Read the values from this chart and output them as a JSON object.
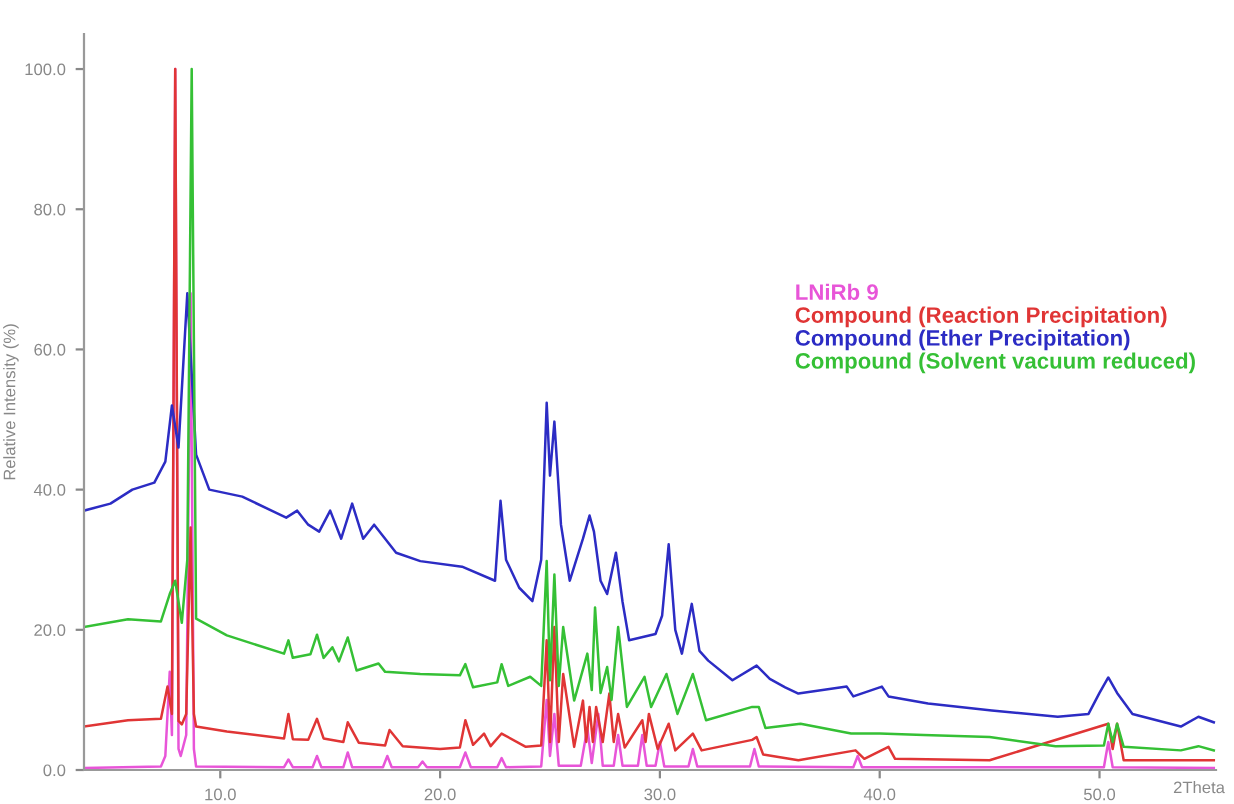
{
  "chart_data": {
    "type": "line",
    "xlabel": "2Theta",
    "ylabel": "Relative Intensity (%)",
    "xlim": [
      3.8,
      55.3
    ],
    "ylim": [
      0,
      105
    ],
    "xticks": [
      {
        "value": 10,
        "label": "10.0"
      },
      {
        "value": 20,
        "label": "20.0"
      },
      {
        "value": 30,
        "label": "30.0"
      },
      {
        "value": 40,
        "label": "40.0"
      },
      {
        "value": 50,
        "label": "50.0"
      }
    ],
    "yticks": [
      {
        "value": 0,
        "label": "0.0"
      },
      {
        "value": 20,
        "label": "20.0"
      },
      {
        "value": 40,
        "label": "40.0"
      },
      {
        "value": 60,
        "label": "60.0"
      },
      {
        "value": 80,
        "label": "80.0"
      },
      {
        "value": 100,
        "label": "100.0"
      }
    ],
    "grid": false,
    "legend": "right",
    "line_style": "solid",
    "marker": "none",
    "series": [
      {
        "name": "LNiRb 9",
        "color": "#e855d8",
        "x": [
          3.8,
          7.3,
          7.5,
          7.7,
          7.8,
          7.95,
          8.1,
          8.2,
          8.45,
          8.65,
          8.8,
          8.9,
          12.9,
          13.1,
          13.3,
          14.2,
          14.4,
          14.6,
          15.6,
          15.8,
          16.0,
          17.4,
          17.6,
          17.8,
          19.0,
          19.2,
          19.4,
          20.9,
          21.15,
          21.4,
          22.6,
          22.8,
          23.0,
          24.6,
          24.85,
          25.0,
          25.2,
          25.4,
          26.4,
          26.7,
          26.9,
          27.2,
          27.4,
          27.9,
          28.1,
          28.3,
          29.0,
          29.2,
          29.4,
          29.8,
          30.0,
          30.2,
          31.3,
          31.5,
          31.7,
          34.1,
          34.3,
          34.5,
          38.8,
          39.0,
          39.2,
          50.2,
          50.4,
          50.6,
          55.2
        ],
        "values": [
          0.3,
          0.5,
          2,
          14,
          5,
          100,
          3,
          2,
          5,
          68,
          3,
          0.5,
          0.4,
          1.5,
          0.4,
          0.4,
          2,
          0.4,
          0.4,
          2.5,
          0.4,
          0.4,
          2,
          0.4,
          0.4,
          1.2,
          0.4,
          0.4,
          2.5,
          0.4,
          0.4,
          1.7,
          0.4,
          0.5,
          10,
          2,
          8,
          0.6,
          0.6,
          6,
          1,
          8,
          0.6,
          0.6,
          5,
          0.6,
          0.6,
          5,
          0.6,
          0.6,
          4,
          0.5,
          0.5,
          3,
          0.5,
          0.5,
          3,
          0.5,
          0.4,
          2,
          0.4,
          0.4,
          4,
          0.4,
          0.3
        ]
      },
      {
        "name": "Compound (Reaction Precipitation)",
        "color": "#e03535",
        "x": [
          3.8,
          5.8,
          7.3,
          7.6,
          7.8,
          7.95,
          8.1,
          8.25,
          8.45,
          8.65,
          8.8,
          8.9,
          10.3,
          12.9,
          13.1,
          13.3,
          14.0,
          14.4,
          14.7,
          15.6,
          15.8,
          16.3,
          17.5,
          17.7,
          18.3,
          20.0,
          20.9,
          21.15,
          21.5,
          22.0,
          22.3,
          22.8,
          23.9,
          24.6,
          24.85,
          25.0,
          25.2,
          25.4,
          25.6,
          26.1,
          26.5,
          26.65,
          26.8,
          26.95,
          27.1,
          27.4,
          27.7,
          27.9,
          28.1,
          28.4,
          29.2,
          29.35,
          29.5,
          29.9,
          30.4,
          30.7,
          31.5,
          31.9,
          34.2,
          34.4,
          34.7,
          36.3,
          38.9,
          39.3,
          40.4,
          40.7,
          45.0,
          50.4,
          50.6,
          50.8,
          51.1,
          55.2
        ],
        "values": [
          6.2,
          7.1,
          7.3,
          11.9,
          8,
          100,
          7,
          6.5,
          8,
          34.6,
          8,
          6.2,
          5.5,
          4.5,
          8.0,
          4.4,
          4.3,
          7.3,
          4.5,
          4.0,
          6.8,
          3.9,
          3.5,
          5.7,
          3.4,
          3.0,
          3.2,
          7.1,
          3.6,
          5.2,
          3.4,
          5.2,
          3.3,
          3.5,
          18.5,
          4,
          20.4,
          4,
          13.7,
          3.3,
          9.9,
          4,
          9.0,
          4,
          9.0,
          4,
          10.9,
          4,
          8,
          3.2,
          7.1,
          4,
          8,
          3.0,
          6.6,
          2.8,
          5.2,
          2.8,
          4.3,
          4.7,
          2.2,
          1.4,
          2.8,
          1.6,
          3.3,
          1.6,
          1.4,
          6.6,
          3,
          6.6,
          1.4,
          1.4
        ]
      },
      {
        "name": "Compound (Ether Precipitation)",
        "color": "#2c2cc4",
        "x": [
          3.8,
          5.0,
          6.0,
          7.0,
          7.5,
          7.8,
          8.1,
          8.5,
          8.9,
          9.5,
          11.0,
          13.0,
          13.5,
          14.0,
          14.5,
          15.0,
          15.5,
          16.0,
          16.5,
          17.0,
          18.0,
          19.1,
          21.0,
          22.5,
          22.75,
          23.0,
          23.6,
          24.2,
          24.6,
          24.85,
          25.0,
          25.2,
          25.5,
          25.9,
          26.5,
          26.8,
          27.0,
          27.3,
          27.6,
          28.0,
          28.3,
          28.6,
          29.8,
          30.1,
          30.4,
          30.7,
          31.0,
          31.45,
          31.8,
          32.2,
          33.3,
          34.4,
          35.0,
          35.7,
          36.3,
          38.5,
          38.8,
          40.1,
          40.4,
          42.2,
          45.1,
          48.1,
          49.5,
          50.0,
          50.4,
          50.8,
          51.5,
          53.7,
          54.5,
          55.2
        ],
        "values": [
          37,
          38,
          40,
          41,
          44,
          52,
          46,
          68,
          45,
          40,
          39,
          36,
          37,
          35,
          34,
          37,
          33,
          38,
          33,
          35,
          31,
          29.8,
          29,
          27,
          38.4,
          30,
          26.0,
          24.1,
          30,
          52.4,
          42,
          49.7,
          35,
          27,
          33,
          36.3,
          34,
          27,
          25.1,
          31,
          24,
          18.5,
          19.4,
          22,
          32.2,
          20,
          16.6,
          23.7,
          17,
          15.6,
          12.8,
          14.9,
          13,
          11.8,
          10.9,
          11.9,
          10.5,
          11.9,
          10.5,
          9.5,
          8.5,
          7.6,
          8,
          11,
          13.2,
          11,
          8,
          6.2,
          7.6,
          6.8
        ]
      },
      {
        "name": "Compound (Solvent vacuum reduced)",
        "color": "#35c035",
        "x": [
          3.8,
          5.8,
          7.3,
          7.7,
          7.95,
          8.25,
          8.5,
          8.7,
          8.9,
          10.3,
          12.9,
          13.1,
          13.3,
          14.1,
          14.4,
          14.7,
          15.1,
          15.4,
          15.8,
          16.2,
          17.2,
          17.5,
          19.1,
          20.9,
          21.15,
          21.5,
          22.6,
          22.8,
          23.1,
          24.1,
          24.6,
          24.85,
          25.0,
          25.2,
          25.4,
          25.6,
          26.1,
          26.7,
          26.9,
          27.05,
          27.3,
          27.6,
          27.8,
          28.1,
          28.5,
          29.3,
          29.6,
          30.3,
          30.8,
          31.5,
          32.1,
          34.2,
          34.5,
          34.8,
          36.4,
          38.7,
          40.0,
          42.0,
          45.0,
          48.0,
          50.2,
          50.4,
          50.6,
          50.8,
          51.1,
          53.7,
          54.5,
          55.2
        ],
        "values": [
          20.4,
          21.5,
          21.2,
          25.1,
          27,
          21,
          30,
          100,
          21.6,
          19.2,
          16.6,
          18.5,
          16.0,
          16.5,
          19.3,
          16,
          17.5,
          15.5,
          18.9,
          14.2,
          15.2,
          14,
          13.7,
          13.5,
          15.1,
          11.8,
          12.5,
          15.1,
          12,
          13.3,
          12,
          29.8,
          12.8,
          27.9,
          12,
          20.4,
          9.9,
          16.6,
          11.4,
          23.2,
          11,
          14.7,
          10,
          20.4,
          9.0,
          13.3,
          9,
          13.7,
          8.0,
          13.7,
          7.1,
          9,
          9,
          6,
          6.6,
          5.2,
          5.2,
          5,
          4.7,
          3.4,
          3.5,
          6.6,
          4,
          6.6,
          3.3,
          2.8,
          3.4,
          2.8
        ]
      }
    ]
  }
}
